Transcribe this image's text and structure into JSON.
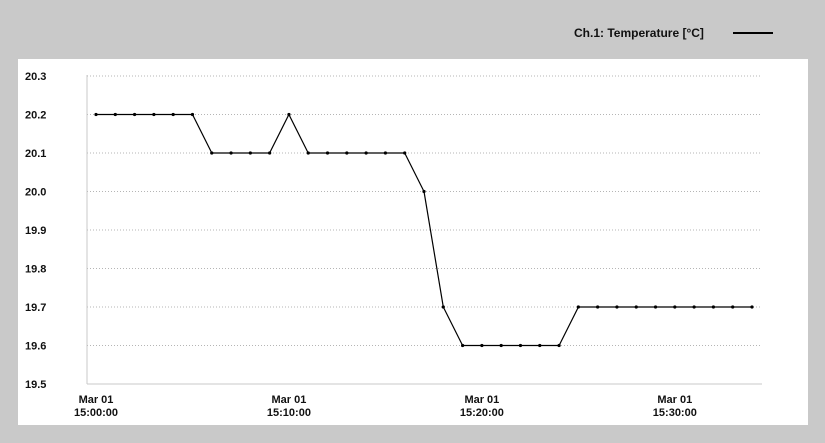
{
  "chart_data": {
    "type": "line",
    "title": "",
    "xlabel": "",
    "ylabel": "",
    "ylim": [
      19.5,
      20.3
    ],
    "yticks": [
      "20.3",
      "20.2",
      "20.1",
      "20.0",
      "19.9",
      "19.8",
      "19.7",
      "19.6",
      "19.5"
    ],
    "xticks": [
      {
        "date": "Mar 01",
        "time": "15:00:00"
      },
      {
        "date": "Mar 01",
        "time": "15:10:00"
      },
      {
        "date": "Mar 01",
        "time": "15:20:00"
      },
      {
        "date": "Mar 01",
        "time": "15:30:00"
      }
    ],
    "xlim": [
      "15:00:00",
      "15:34:00"
    ],
    "grid": true,
    "legend_position": "top-right",
    "series": [
      {
        "name": "Ch.1: Temperature [°C]",
        "color": "#000000",
        "marker": "dot",
        "x": [
          "15:00:00",
          "15:01:00",
          "15:02:00",
          "15:03:00",
          "15:04:00",
          "15:05:00",
          "15:06:00",
          "15:07:00",
          "15:08:00",
          "15:09:00",
          "15:10:00",
          "15:11:00",
          "15:12:00",
          "15:13:00",
          "15:14:00",
          "15:15:00",
          "15:16:00",
          "15:17:00",
          "15:18:00",
          "15:19:00",
          "15:20:00",
          "15:21:00",
          "15:22:00",
          "15:23:00",
          "15:24:00",
          "15:25:00",
          "15:26:00",
          "15:27:00",
          "15:28:00",
          "15:29:00",
          "15:30:00",
          "15:31:00",
          "15:32:00",
          "15:33:00",
          "15:34:00"
        ],
        "y": [
          20.2,
          20.2,
          20.2,
          20.2,
          20.2,
          20.2,
          20.1,
          20.1,
          20.1,
          20.1,
          20.2,
          20.1,
          20.1,
          20.1,
          20.1,
          20.1,
          20.1,
          20.0,
          19.7,
          19.6,
          19.6,
          19.6,
          19.6,
          19.6,
          19.6,
          19.7,
          19.7,
          19.7,
          19.7,
          19.7,
          19.7,
          19.7,
          19.7,
          19.7,
          19.7
        ]
      }
    ]
  }
}
